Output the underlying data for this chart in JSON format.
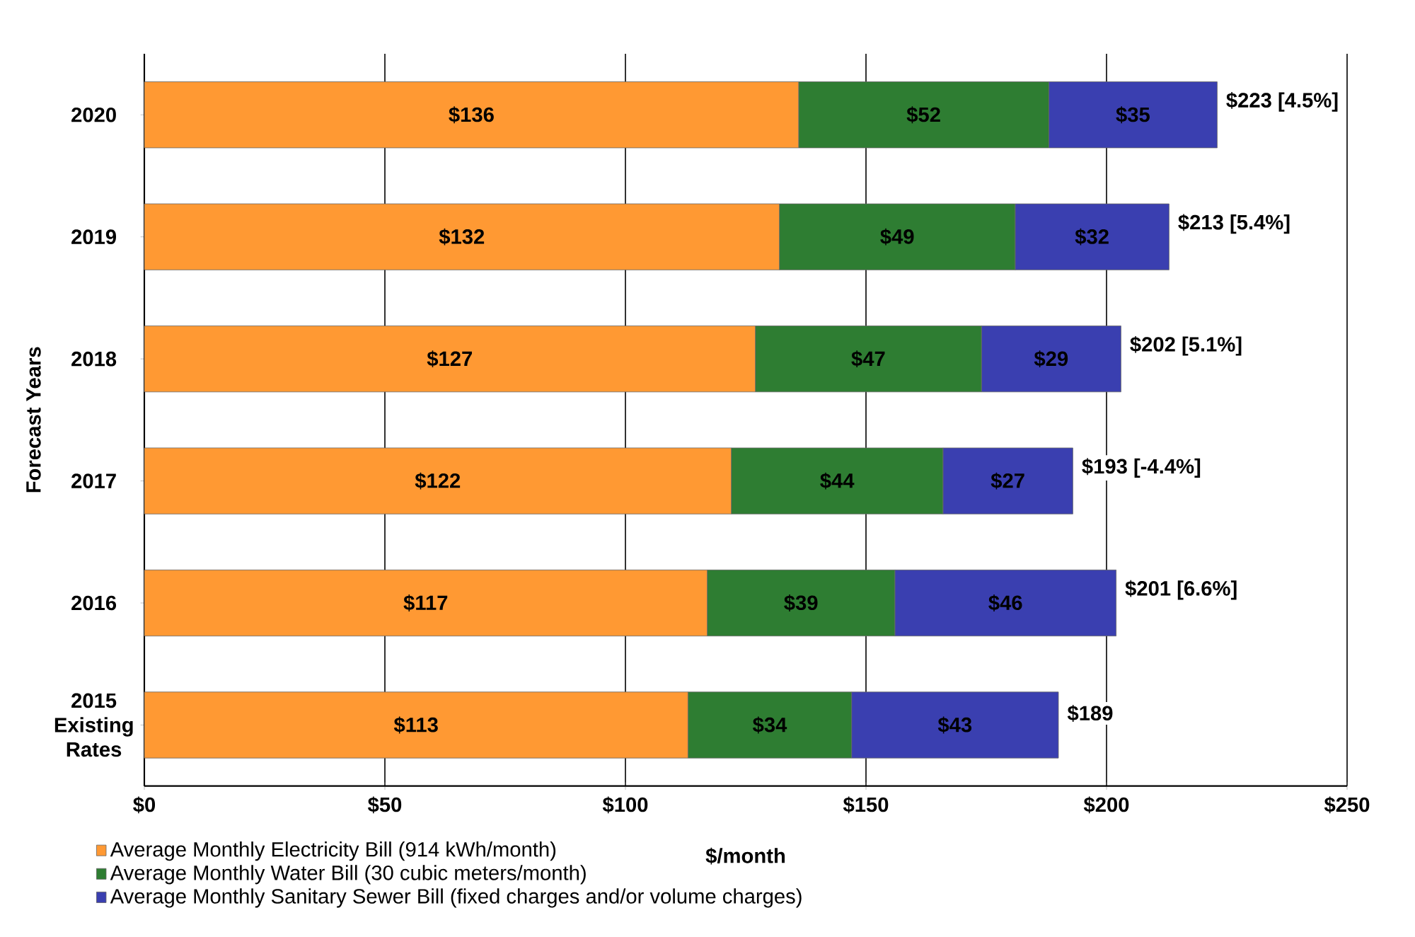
{
  "chart_data": {
    "type": "bar",
    "orientation": "horizontal",
    "stacked": true,
    "xlabel": "$/month",
    "ylabel": "Forecast Years",
    "categories": [
      "2020",
      "2019",
      "2018",
      "2017",
      "2016",
      "2015 Existing Rates"
    ],
    "series": [
      {
        "name": "Average Monthly Electricity Bill (914 kWh/month)",
        "color": "#ff9933",
        "values": [
          136,
          132,
          127,
          122,
          117,
          113
        ],
        "value_labels": [
          "$136",
          "$132",
          "$127",
          "$122",
          "$117",
          "$113"
        ]
      },
      {
        "name": "Average Monthly Water Bill (30 cubic meters/month)",
        "color": "#2e7d32",
        "values": [
          52,
          49,
          47,
          44,
          39,
          34
        ],
        "value_labels": [
          "$52",
          "$49",
          "$47",
          "$44",
          "$39",
          "$34"
        ]
      },
      {
        "name": "Average Monthly Sanitary Sewer Bill (fixed charges and/or volume charges)",
        "color": "#3a3fb0",
        "values": [
          35,
          32,
          29,
          27,
          46,
          43
        ],
        "value_labels": [
          "$35",
          "$32",
          "$29",
          "$27",
          "$46",
          "$43"
        ]
      }
    ],
    "totals": [
      "$223 [4.5%]",
      "$213 [5.4%]",
      "$202 [5.1%]",
      "$193 [-4.4%]",
      "$201 [6.6%]",
      "$189"
    ],
    "xlim": [
      0,
      250
    ],
    "xticks": [
      {
        "value": 0,
        "label": "$0"
      },
      {
        "value": 50,
        "label": "$50"
      },
      {
        "value": 100,
        "label": "$100"
      },
      {
        "value": 150,
        "label": "$150"
      },
      {
        "value": 200,
        "label": "$200"
      },
      {
        "value": 250,
        "label": "$250"
      }
    ],
    "grid": "x",
    "legend": "bottom",
    "marker": "none"
  }
}
